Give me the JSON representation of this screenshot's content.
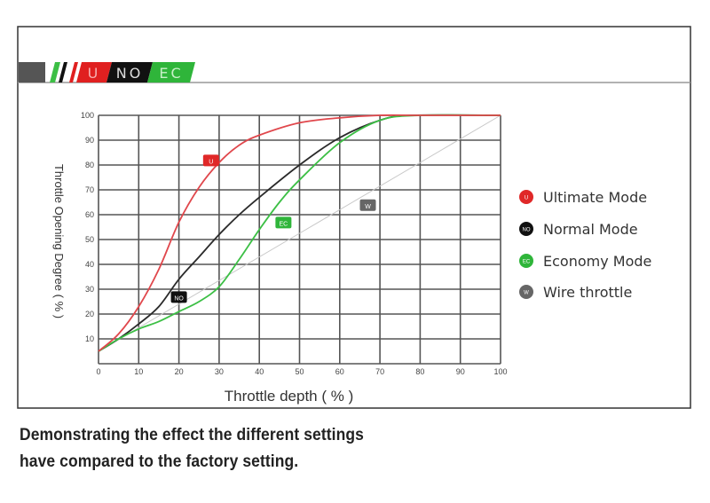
{
  "header_badges": [
    {
      "text": "U",
      "color": "#e02020"
    },
    {
      "text": "NO",
      "color": "#111111"
    },
    {
      "text": "EC",
      "color": "#2fb53a"
    }
  ],
  "caption": {
    "line1": "Demonstrating the effect the different settings",
    "line2": "have compared to the factory setting."
  },
  "chart_data": {
    "type": "line",
    "title": "",
    "xlabel": "Throttle depth ( % )",
    "ylabel": "Throttle Opening Degree ( % )",
    "xlim": [
      0,
      100
    ],
    "ylim": [
      0,
      100
    ],
    "xticks": [
      "0",
      "10",
      "20",
      "30",
      "40",
      "50",
      "60",
      "70",
      "80",
      "90",
      "100"
    ],
    "yticks": [
      "10",
      "20",
      "30",
      "40",
      "50",
      "60",
      "70",
      "80",
      "90",
      "100"
    ],
    "grid": true,
    "legend_position": "right",
    "series": [
      {
        "name": "Ultimate Mode",
        "badge": "U",
        "color": "#e0474c",
        "x": [
          0,
          5,
          10,
          15,
          20,
          25,
          30,
          35,
          40,
          50,
          60,
          70,
          80,
          100
        ],
        "y": [
          5,
          12,
          23,
          38,
          57,
          71,
          81,
          88,
          92,
          97,
          99,
          100,
          100,
          100
        ],
        "label_at": [
          28,
          82
        ]
      },
      {
        "name": "Normal Mode",
        "badge": "NO",
        "color": "#2a2a2a",
        "x": [
          0,
          5,
          10,
          15,
          20,
          25,
          30,
          35,
          40,
          50,
          60,
          70,
          78,
          100
        ],
        "y": [
          5,
          10,
          16,
          23,
          34,
          43,
          52,
          60,
          67,
          80,
          91,
          98,
          100,
          100
        ],
        "label_at": [
          20,
          27
        ]
      },
      {
        "name": "Economy Mode",
        "badge": "EC",
        "color": "#3cbf45",
        "x": [
          0,
          5,
          10,
          15,
          20,
          25,
          30,
          35,
          40,
          45,
          50,
          60,
          70,
          80,
          100
        ],
        "y": [
          5,
          10,
          14,
          17,
          21,
          25,
          31,
          42,
          54,
          65,
          74,
          89,
          98,
          100,
          100
        ],
        "label_at": [
          46,
          57
        ]
      },
      {
        "name": "Wire throttle",
        "badge": "W",
        "color": "#c8c8c8",
        "x": [
          0,
          100
        ],
        "y": [
          5,
          100
        ],
        "label_at": [
          67,
          64
        ]
      }
    ],
    "legend_marker_colors": [
      "#e02828",
      "#111111",
      "#2fb53a",
      "#666666"
    ]
  }
}
